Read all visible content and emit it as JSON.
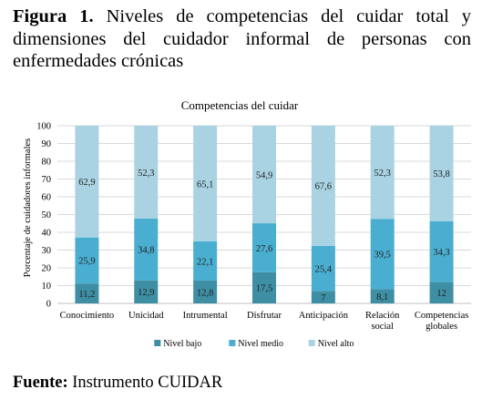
{
  "caption": {
    "label": "Figura 1.",
    "text": "Niveles de competencias del cuidar total y dimensiones del cuidador informal de personas con enfermedades crónicas"
  },
  "source": {
    "label": "Fuente:",
    "text": "Instrumento CUIDAR"
  },
  "chart_data": {
    "type": "bar",
    "stacked": true,
    "title": "Competencias del cuidar",
    "xlabel": "",
    "ylabel": "Porcentaje de cuidadores informales",
    "ylim": [
      0,
      100
    ],
    "yticks": [
      0,
      10,
      20,
      30,
      40,
      50,
      60,
      70,
      80,
      90,
      100
    ],
    "grid": true,
    "legend_position": "bottom",
    "categories": [
      [
        "Conocimiento"
      ],
      [
        "Unicidad"
      ],
      [
        "Intrumental"
      ],
      [
        "Disfrutar"
      ],
      [
        "Anticipación"
      ],
      [
        "Relación",
        "social"
      ],
      [
        "Competencias",
        "globales"
      ]
    ],
    "series": [
      {
        "name": "Nivel bajo",
        "color": "#3e8ea4",
        "values": [
          11.2,
          12.9,
          12.8,
          17.5,
          7,
          8.1,
          12
        ],
        "labels": [
          "11,2",
          "12,9",
          "12,8",
          "17,5",
          "7",
          "8,1",
          "12"
        ]
      },
      {
        "name": "Nivel medio",
        "color": "#4aaed0",
        "values": [
          25.9,
          34.8,
          22.1,
          27.6,
          25.4,
          39.5,
          34.3
        ],
        "labels": [
          "25,9",
          "34,8",
          "22,1",
          "27,6",
          "25,4",
          "39,5",
          "34,3"
        ]
      },
      {
        "name": "Nivel alto",
        "color": "#a9d3e3",
        "values": [
          62.9,
          52.3,
          65.1,
          54.9,
          67.6,
          52.3,
          53.8
        ],
        "labels": [
          "62,9",
          "52,3",
          "65,1",
          "54,9",
          "67,6",
          "52,3",
          "53,8"
        ]
      }
    ]
  }
}
